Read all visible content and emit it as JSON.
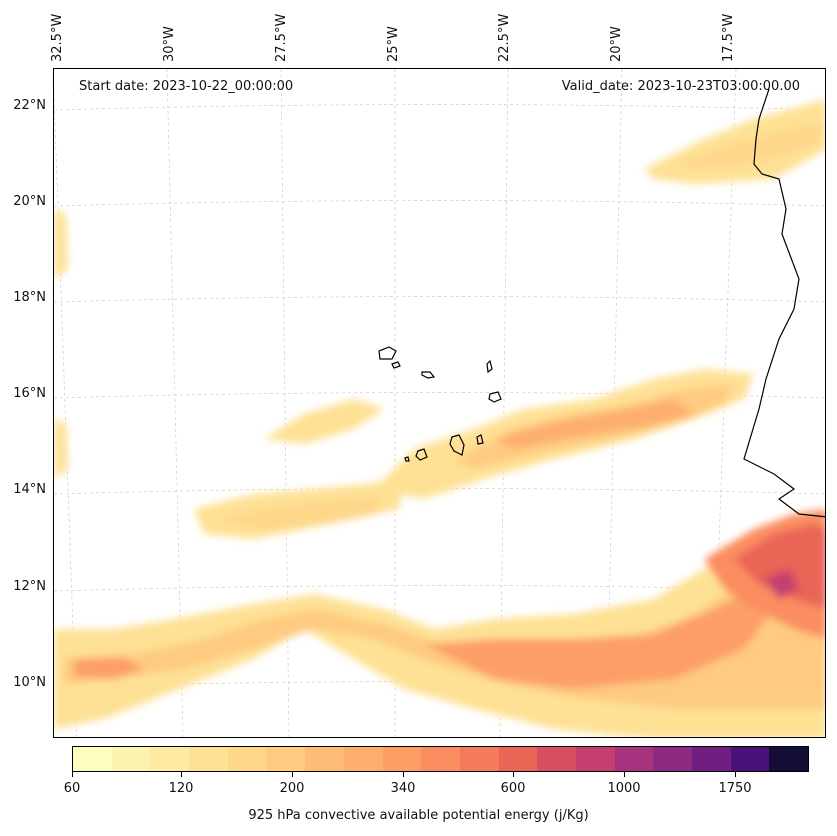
{
  "map": {
    "start_date": "Start date: 2023-10-22_00:00:00",
    "valid_date": "Valid_date: 2023-10-23T03:00:00.00",
    "longitude_labels": [
      "32.5°W",
      "30°W",
      "27.5°W",
      "25°W",
      "22.5°W",
      "20°W",
      "17.5°W"
    ],
    "latitude_labels": [
      "22°N",
      "20°N",
      "18°N",
      "16°N",
      "14°N",
      "12°N",
      "10°N"
    ],
    "gridlines": true,
    "field": "925 hPa convective available potential energy"
  },
  "colorbar": {
    "title": "925 hPa convective available potential energy (j/Kg)",
    "tick_labels": [
      "60",
      "120",
      "200",
      "340",
      "600",
      "1000",
      "1750"
    ],
    "colors": [
      "#fcfdbf",
      "#fdf3b0",
      "#feeaa1",
      "#fee195",
      "#fed78b",
      "#fecb80",
      "#febd77",
      "#fdae6f",
      "#fd9e67",
      "#fb8d61",
      "#f47a5b",
      "#e96556",
      "#d8505f",
      "#c43f6f",
      "#a8327d",
      "#8c2981",
      "#6e1f81",
      "#4b117a",
      "#140e36"
    ]
  },
  "coastlines": {
    "color": "#000000"
  }
}
